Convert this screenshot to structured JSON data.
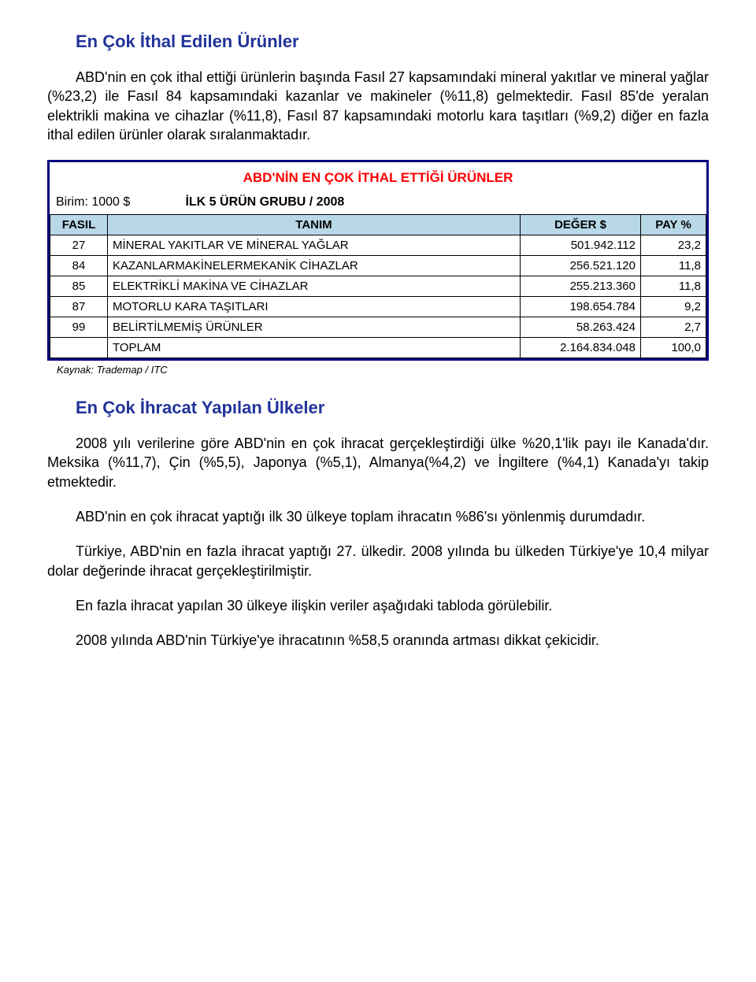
{
  "section1": {
    "heading": "En Çok İthal Edilen Ürünler",
    "para1": "ABD'nin en çok ithal ettiği ürünlerin başında Fasıl 27 kapsamındaki mineral yakıtlar ve mineral yağlar (%23,2) ile Fasıl 84 kapsamındaki kazanlar ve makineler (%11,8) gelmektedir. Fasıl 85'de yeralan elektrikli makina ve cihazlar (%11,8), Fasıl 87 kapsamındaki motorlu kara taşıtları (%9,2) diğer en fazla ithal edilen ürünler olarak sıralanmaktadır."
  },
  "table": {
    "title": "ABD'NİN EN ÇOK İTHAL ETTİĞİ ÜRÜNLER",
    "unit_label": "Birim: 1000 $",
    "group_label": "İLK 5 ÜRÜN GRUBU / 2008",
    "columns": [
      "FASIL",
      "TANIM",
      "DEĞER $",
      "PAY %"
    ],
    "rows": [
      {
        "fasil": "27",
        "tanim": "MİNERAL YAKITLAR VE MİNERAL YAĞLAR",
        "deger": "501.942.112",
        "pay": "23,2"
      },
      {
        "fasil": "84",
        "tanim": "KAZANLARMAKİNELERMEKANİK CİHAZLAR",
        "deger": "256.521.120",
        "pay": "11,8"
      },
      {
        "fasil": "85",
        "tanim": "ELEKTRİKLİ MAKİNA VE CİHAZLAR",
        "deger": "255.213.360",
        "pay": "11,8"
      },
      {
        "fasil": "87",
        "tanim": "MOTORLU KARA TAŞITLARI",
        "deger": "198.654.784",
        "pay": "9,2"
      },
      {
        "fasil": "99",
        "tanim": "BELİRTİLMEMİŞ ÜRÜNLER",
        "deger": "58.263.424",
        "pay": "2,7"
      },
      {
        "fasil": "",
        "tanim": "TOPLAM",
        "deger": "2.164.834.048",
        "pay": "100,0"
      }
    ],
    "source": "Kaynak: Trademap / ITC",
    "colors": {
      "border": "#000080",
      "title": "#ff0000",
      "header_bg": "#b8d8e8",
      "cell_border": "#000000"
    }
  },
  "section2": {
    "heading": "En Çok İhracat Yapılan Ülkeler",
    "para1": "2008 yılı verilerine göre ABD'nin en çok ihracat gerçekleştirdiği ülke %20,1'lik payı ile Kanada'dır. Meksika (%11,7), Çin (%5,5), Japonya (%5,1), Almanya(%4,2) ve İngiltere (%4,1) Kanada'yı takip etmektedir.",
    "para2": "ABD'nin en çok ihracat yaptığı ilk 30 ülkeye toplam ihracatın %86'sı yönlenmiş durumdadır.",
    "para3": "Türkiye, ABD'nin en fazla ihracat yaptığı 27. ülkedir. 2008 yılında bu ülkeden Türkiye'ye 10,4 milyar dolar değerinde ihracat gerçekleştirilmiştir.",
    "para4": "En fazla ihracat yapılan 30 ülkeye ilişkin veriler aşağıdaki tabloda görülebilir.",
    "para5": "2008 yılında ABD'nin Türkiye'ye  ihracatının %58,5 oranında artması dikkat çekicidir."
  }
}
